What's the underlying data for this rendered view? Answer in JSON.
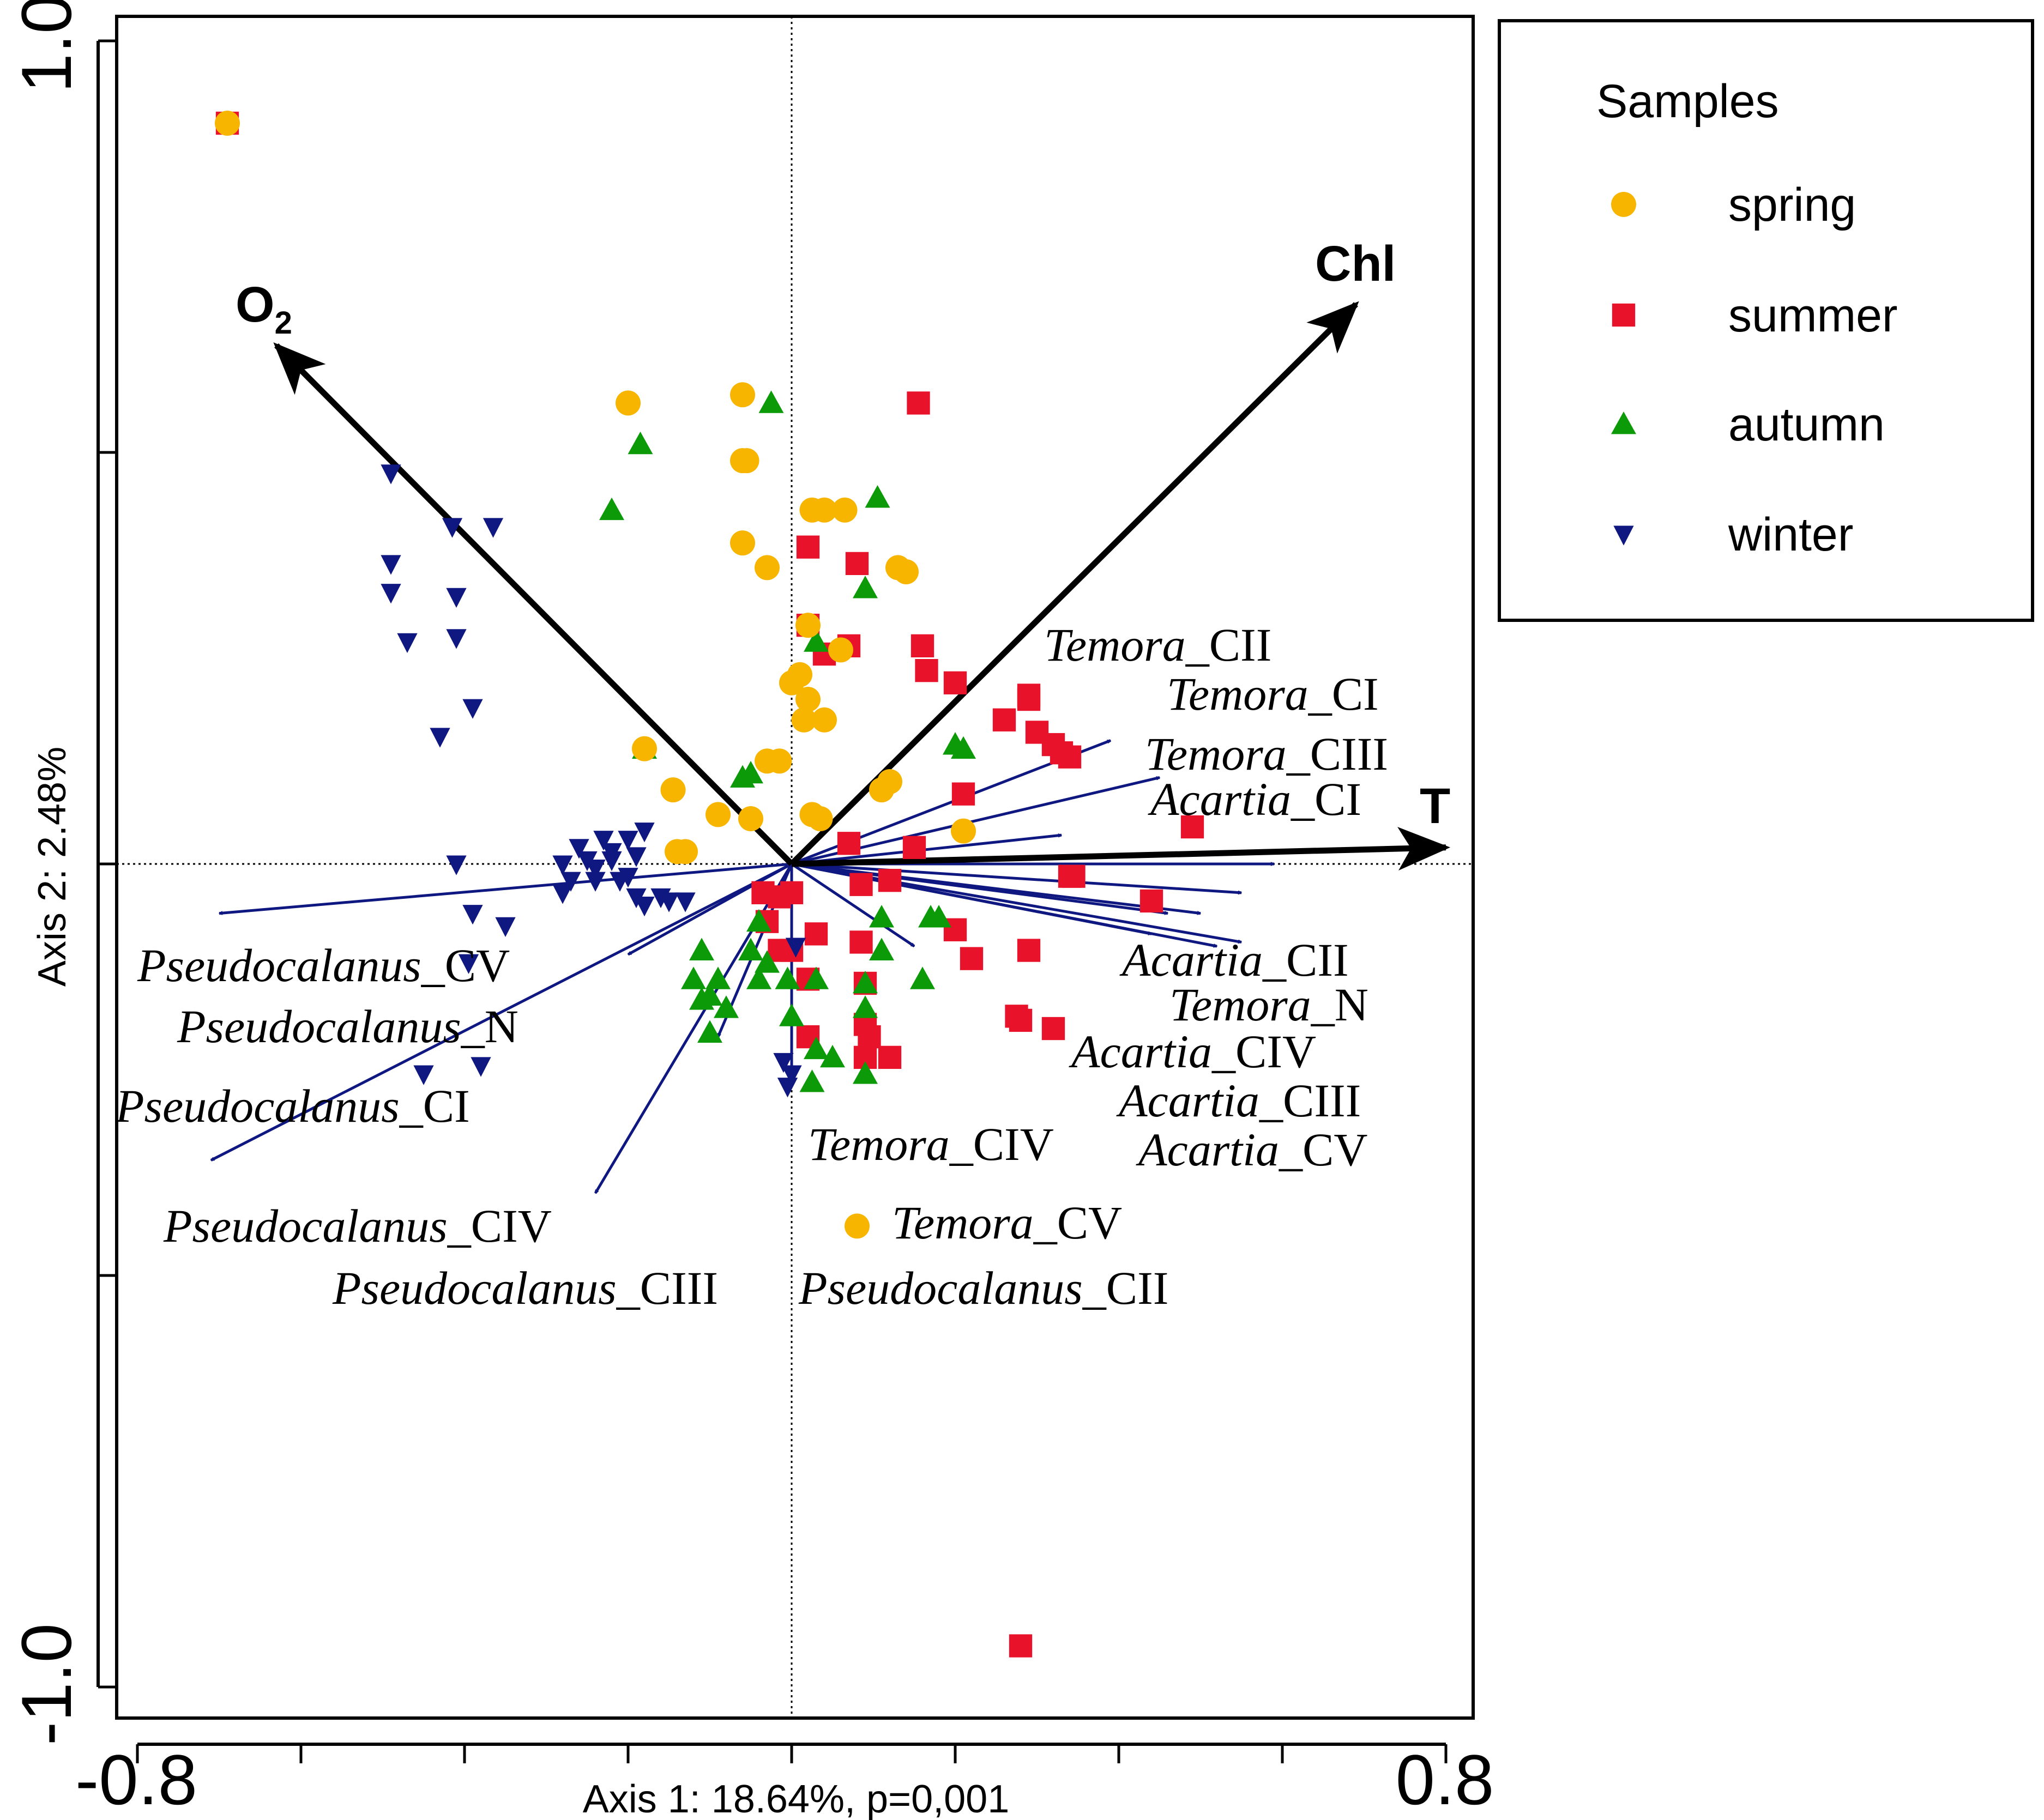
{
  "chart_data": {
    "type": "scatter",
    "title": "",
    "xlabel": "Axis 1: 18.64%, p=0,001",
    "ylabel": "Axis 2: 2.48%",
    "xlim": [
      -0.8,
      0.8
    ],
    "ylim": [
      -1.0,
      1.0
    ],
    "x_tick_labels": [
      "-0.8",
      "0.8"
    ],
    "y_tick_labels": [
      "1.0",
      "-1.0"
    ],
    "legend_title": "Samples",
    "legend_position": "top-right outside",
    "series": [
      {
        "name": "spring",
        "marker": "circle",
        "color": "#f7b500",
        "points": [
          [
            -0.69,
            0.9
          ],
          [
            -0.2,
            0.56
          ],
          [
            -0.06,
            0.57
          ],
          [
            -0.06,
            0.49
          ],
          [
            -0.055,
            0.49
          ],
          [
            0.025,
            0.43
          ],
          [
            0.04,
            0.43
          ],
          [
            0.065,
            0.43
          ],
          [
            -0.06,
            0.39
          ],
          [
            -0.03,
            0.36
          ],
          [
            0.13,
            0.36
          ],
          [
            0.14,
            0.355
          ],
          [
            0.02,
            0.29
          ],
          [
            0.06,
            0.26
          ],
          [
            0.01,
            0.23
          ],
          [
            0.0,
            0.22
          ],
          [
            0.02,
            0.2
          ],
          [
            0.015,
            0.175
          ],
          [
            0.04,
            0.175
          ],
          [
            -0.18,
            0.14
          ],
          [
            -0.03,
            0.125
          ],
          [
            -0.015,
            0.125
          ],
          [
            0.12,
            0.1
          ],
          [
            0.11,
            0.09
          ],
          [
            -0.145,
            0.09
          ],
          [
            -0.09,
            0.06
          ],
          [
            -0.05,
            0.055
          ],
          [
            0.025,
            0.06
          ],
          [
            0.035,
            0.055
          ],
          [
            0.21,
            0.04
          ],
          [
            -0.14,
            0.015
          ],
          [
            -0.13,
            0.015
          ],
          [
            0.08,
            -0.44
          ]
        ]
      },
      {
        "name": "summer",
        "marker": "square",
        "color": "#e8132b",
        "points": [
          [
            -0.69,
            0.9
          ],
          [
            0.155,
            0.56
          ],
          [
            0.02,
            0.385
          ],
          [
            0.08,
            0.365
          ],
          [
            0.02,
            0.29
          ],
          [
            0.07,
            0.265
          ],
          [
            0.04,
            0.255
          ],
          [
            0.16,
            0.265
          ],
          [
            0.165,
            0.235
          ],
          [
            0.2,
            0.22
          ],
          [
            0.29,
            0.205
          ],
          [
            0.29,
            0.2
          ],
          [
            0.26,
            0.175
          ],
          [
            0.3,
            0.16
          ],
          [
            0.32,
            0.145
          ],
          [
            0.33,
            0.135
          ],
          [
            0.34,
            0.13
          ],
          [
            0.21,
            0.085
          ],
          [
            0.49,
            0.045
          ],
          [
            0.07,
            0.025
          ],
          [
            0.15,
            0.02
          ],
          [
            0.34,
            -0.015
          ],
          [
            0.345,
            -0.015
          ],
          [
            0.085,
            -0.025
          ],
          [
            0.12,
            -0.02
          ],
          [
            0.44,
            -0.045
          ],
          [
            -0.035,
            -0.035
          ],
          [
            -0.015,
            -0.04
          ],
          [
            0.0,
            -0.035
          ],
          [
            -0.03,
            -0.07
          ],
          [
            0.2,
            -0.08
          ],
          [
            0.03,
            -0.085
          ],
          [
            0.085,
            -0.095
          ],
          [
            0.29,
            -0.105
          ],
          [
            -0.015,
            -0.105
          ],
          [
            0.0,
            -0.105
          ],
          [
            0.22,
            -0.115
          ],
          [
            0.02,
            -0.14
          ],
          [
            0.09,
            -0.145
          ],
          [
            0.275,
            -0.185
          ],
          [
            0.28,
            -0.19
          ],
          [
            0.32,
            -0.2
          ],
          [
            0.09,
            -0.195
          ],
          [
            0.095,
            -0.21
          ],
          [
            0.02,
            -0.21
          ],
          [
            0.12,
            -0.235
          ],
          [
            0.09,
            -0.235
          ],
          [
            0.28,
            -0.95
          ]
        ]
      },
      {
        "name": "autumn",
        "marker": "triangle-up",
        "color": "#0c9a08",
        "points": [
          [
            -0.025,
            0.56
          ],
          [
            -0.185,
            0.51
          ],
          [
            0.105,
            0.445
          ],
          [
            -0.22,
            0.43
          ],
          [
            0.09,
            0.335
          ],
          [
            0.03,
            0.27
          ],
          [
            0.2,
            0.145
          ],
          [
            0.21,
            0.14
          ],
          [
            -0.18,
            0.14
          ],
          [
            -0.05,
            0.11
          ],
          [
            -0.06,
            0.105
          ],
          [
            0.11,
            -0.065
          ],
          [
            0.17,
            -0.065
          ],
          [
            0.18,
            -0.065
          ],
          [
            -0.04,
            -0.07
          ],
          [
            -0.11,
            -0.105
          ],
          [
            0.11,
            -0.105
          ],
          [
            -0.05,
            -0.105
          ],
          [
            -0.03,
            -0.12
          ],
          [
            -0.12,
            -0.14
          ],
          [
            -0.09,
            -0.14
          ],
          [
            -0.005,
            -0.14
          ],
          [
            -0.04,
            -0.14
          ],
          [
            0.03,
            -0.14
          ],
          [
            0.16,
            -0.14
          ],
          [
            0.09,
            -0.145
          ],
          [
            -0.1,
            -0.16
          ],
          [
            -0.11,
            -0.165
          ],
          [
            -0.08,
            -0.175
          ],
          [
            0.09,
            -0.175
          ],
          [
            0.0,
            -0.185
          ],
          [
            -0.1,
            -0.205
          ],
          [
            0.03,
            -0.225
          ],
          [
            0.05,
            -0.235
          ],
          [
            0.09,
            -0.255
          ],
          [
            0.025,
            -0.265
          ]
        ]
      },
      {
        "name": "winter",
        "marker": "triangle-down",
        "color": "#0f1780",
        "points": [
          [
            -0.49,
            0.475
          ],
          [
            -0.415,
            0.41
          ],
          [
            -0.365,
            0.41
          ],
          [
            -0.49,
            0.365
          ],
          [
            -0.49,
            0.33
          ],
          [
            -0.41,
            0.325
          ],
          [
            -0.47,
            0.27
          ],
          [
            -0.41,
            0.275
          ],
          [
            -0.39,
            0.19
          ],
          [
            -0.43,
            0.155
          ],
          [
            -0.41,
            0.0
          ],
          [
            -0.39,
            -0.06
          ],
          [
            -0.395,
            -0.12
          ],
          [
            -0.35,
            -0.075
          ],
          [
            -0.38,
            -0.245
          ],
          [
            -0.45,
            -0.255
          ],
          [
            -0.18,
            0.04
          ],
          [
            -0.2,
            0.03
          ],
          [
            -0.23,
            0.03
          ],
          [
            -0.26,
            0.02
          ],
          [
            -0.22,
            0.015
          ],
          [
            -0.25,
            0.005
          ],
          [
            -0.28,
            0.0
          ],
          [
            -0.24,
            -0.005
          ],
          [
            -0.22,
            0.005
          ],
          [
            -0.19,
            0.01
          ],
          [
            -0.27,
            -0.02
          ],
          [
            -0.24,
            -0.02
          ],
          [
            -0.21,
            -0.02
          ],
          [
            -0.2,
            -0.015
          ],
          [
            -0.19,
            -0.04
          ],
          [
            -0.16,
            -0.04
          ],
          [
            -0.15,
            -0.045
          ],
          [
            -0.13,
            -0.045
          ],
          [
            -0.18,
            -0.05
          ],
          [
            -0.28,
            -0.035
          ],
          [
            0.005,
            -0.1
          ],
          [
            0.0,
            -0.255
          ],
          [
            -0.01,
            -0.24
          ],
          [
            -0.005,
            -0.27
          ]
        ]
      }
    ],
    "env_vectors": [
      {
        "label": "O",
        "subscript": "2",
        "x": -0.63,
        "y": 0.63
      },
      {
        "label": "Chl",
        "x": 0.69,
        "y": 0.68
      },
      {
        "label": "T",
        "x": 0.8,
        "y": 0.02
      }
    ],
    "species_vectors": [
      {
        "label": "Temora",
        "suffix": "_CII",
        "x": 0.39,
        "y": 0.15
      },
      {
        "label": "Temora",
        "suffix": "_CI",
        "x": 0.45,
        "y": 0.105
      },
      {
        "label": "Temora",
        "suffix": "_CIII",
        "x": 0.33,
        "y": 0.035
      },
      {
        "label": "Acartia",
        "suffix": "_CI",
        "x": 0.59,
        "y": 0.0
      },
      {
        "label": "Acartia",
        "suffix": "_CII",
        "x": 0.55,
        "y": -0.035
      },
      {
        "label": "Temora",
        "suffix": "_N",
        "x": 0.44,
        "y": -0.085
      },
      {
        "label": "Acartia",
        "suffix": "_CIV",
        "x": 0.55,
        "y": -0.095
      },
      {
        "label": "Acartia",
        "suffix": "_CIII",
        "x": 0.5,
        "y": -0.06
      },
      {
        "label": "Acartia",
        "suffix": "_CV",
        "x": 0.52,
        "y": -0.1
      },
      {
        "label": "Temora",
        "suffix": "_CIV",
        "x": 0.15,
        "y": -0.1
      },
      {
        "label": "Temora",
        "suffix": "_CV",
        "x": 0.46,
        "y": -0.06
      },
      {
        "label": "Pseudocalanus",
        "suffix": "_CII",
        "x": 0.0,
        "y": -0.27
      },
      {
        "label": "Pseudocalanus",
        "suffix": "_CIII",
        "x": -0.24,
        "y": -0.4
      },
      {
        "label": "Pseudocalanus",
        "suffix": "_CIV",
        "x": -0.09,
        "y": -0.21
      },
      {
        "label": "Pseudocalanus",
        "suffix": "_CI",
        "x": -0.7,
        "y": -0.06
      },
      {
        "label": "Pseudocalanus",
        "suffix": "_N",
        "x": -0.2,
        "y": -0.11
      },
      {
        "label": "Pseudocalanus",
        "suffix": "_CV",
        "x": -0.71,
        "y": -0.36
      }
    ]
  }
}
